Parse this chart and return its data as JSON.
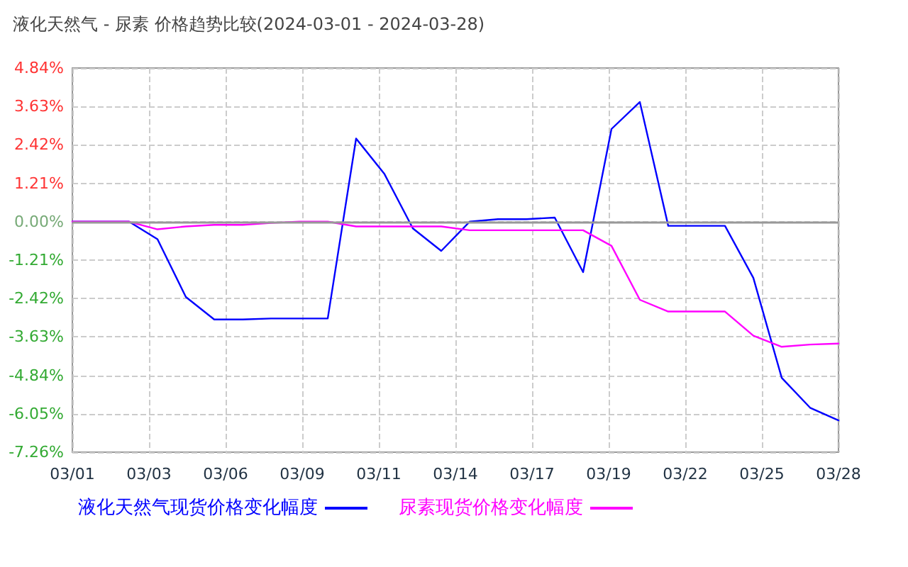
{
  "chart_data": {
    "type": "line",
    "title": "液化天然气 - 尿素 价格趋势比较(2024-03-01 - 2024-03-28)",
    "x": [
      "2024-03-01",
      "2024-03-02",
      "2024-03-03",
      "2024-03-04",
      "2024-03-05",
      "2024-03-06",
      "2024-03-07",
      "2024-03-08",
      "2024-03-09",
      "2024-03-10",
      "2024-03-11",
      "2024-03-12",
      "2024-03-13",
      "2024-03-14",
      "2024-03-15",
      "2024-03-16",
      "2024-03-17",
      "2024-03-18",
      "2024-03-19",
      "2024-03-20",
      "2024-03-21",
      "2024-03-22",
      "2024-03-23",
      "2024-03-24",
      "2024-03-25",
      "2024-03-26",
      "2024-03-27",
      "2024-03-28"
    ],
    "series": [
      {
        "name": "液化天然气现货价格变化幅度",
        "color": "#0000ff",
        "values": [
          0,
          0,
          0,
          -0.55,
          -2.37,
          -3.08,
          -3.08,
          -3.05,
          -3.05,
          -3.05,
          2.62,
          1.5,
          -0.21,
          -0.92,
          0,
          0.08,
          0.08,
          0.13,
          -1.59,
          2.92,
          3.77,
          -0.13,
          -0.13,
          -0.13,
          -1.77,
          -4.92,
          -5.86,
          -6.26
        ]
      },
      {
        "name": "尿素现货价格变化幅度",
        "color": "#ff00ff",
        "values": [
          0,
          0,
          0,
          -0.24,
          -0.15,
          -0.1,
          -0.1,
          -0.04,
          0,
          0,
          -0.15,
          -0.15,
          -0.15,
          -0.15,
          -0.27,
          -0.27,
          -0.27,
          -0.27,
          -0.27,
          -0.76,
          -2.46,
          -2.83,
          -2.83,
          -2.83,
          -3.59,
          -3.94,
          -3.87,
          -3.84
        ]
      }
    ],
    "xlim": [
      "2024-03-01",
      "2024-03-28"
    ],
    "xticks": [
      {
        "value": "2024-03-01",
        "label": "03/01"
      },
      {
        "value": "2024-03-03T16:48",
        "label": "03/03"
      },
      {
        "value": "2024-03-06T09:36",
        "label": "03/06"
      },
      {
        "value": "2024-03-09T02:24",
        "label": "03/09"
      },
      {
        "value": "2024-03-11T19:12",
        "label": "03/11"
      },
      {
        "value": "2024-03-14T12:00",
        "label": "03/14"
      },
      {
        "value": "2024-03-17T04:48",
        "label": "03/17"
      },
      {
        "value": "2024-03-19T21:36",
        "label": "03/19"
      },
      {
        "value": "2024-03-22T14:24",
        "label": "03/22"
      },
      {
        "value": "2024-03-25T07:12",
        "label": "03/25"
      },
      {
        "value": "2024-03-28",
        "label": "03/28"
      }
    ],
    "ylim": [
      -7.26,
      4.84
    ],
    "yticks": [
      {
        "value": 4.84,
        "label": "4.84%"
      },
      {
        "value": 3.63,
        "label": "3.63%"
      },
      {
        "value": 2.42,
        "label": "2.42%"
      },
      {
        "value": 1.21,
        "label": "1.21%"
      },
      {
        "value": 0,
        "label": "0.00%"
      },
      {
        "value": -1.21,
        "label": "-1.21%"
      },
      {
        "value": -2.42,
        "label": "-2.42%"
      },
      {
        "value": -3.63,
        "label": "-3.63%"
      },
      {
        "value": -4.84,
        "label": "-4.84%"
      },
      {
        "value": -6.05,
        "label": "-6.05%"
      },
      {
        "value": -7.26,
        "label": "-7.26%"
      }
    ],
    "ref_lines": [
      {
        "axis": "y",
        "value": 0,
        "color": "#999999"
      }
    ],
    "grid": true,
    "legend": "bottom left",
    "marker": "none",
    "line_style": "solid"
  }
}
